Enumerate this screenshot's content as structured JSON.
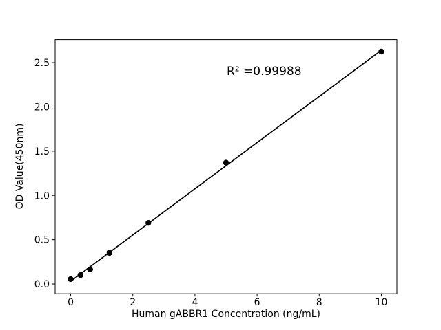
{
  "chart_data": {
    "type": "scatter",
    "title": "",
    "xlabel": "Human gABBR1 Concentration (ng/mL)",
    "ylabel": "OD Value(450nm)",
    "annotation": "R² =0.99988",
    "x": [
      0,
      0.313,
      0.625,
      1.25,
      2.5,
      5,
      10
    ],
    "y": [
      0.055,
      0.1,
      0.165,
      0.35,
      0.69,
      1.37,
      2.625
    ],
    "fit_line": {
      "x": [
        0,
        10
      ],
      "y": [
        0.031,
        2.64
      ]
    },
    "xlim": [
      -0.5,
      10.5
    ],
    "ylim": [
      -0.11,
      2.76
    ],
    "xtick_values": [
      0,
      2,
      4,
      6,
      8,
      10
    ],
    "xtick_labels": [
      "0",
      "2",
      "4",
      "6",
      "8",
      "10"
    ],
    "ytick_values": [
      0.0,
      0.5,
      1.0,
      1.5,
      2.0,
      2.5
    ],
    "ytick_labels": [
      "0.0",
      "0.5",
      "1.0",
      "1.5",
      "2.0",
      "2.5"
    ],
    "grid": false,
    "legend": null,
    "marker_color": "#000000",
    "line_color": "#000000",
    "axis_color": "#000000",
    "background_color": "#ffffff"
  }
}
